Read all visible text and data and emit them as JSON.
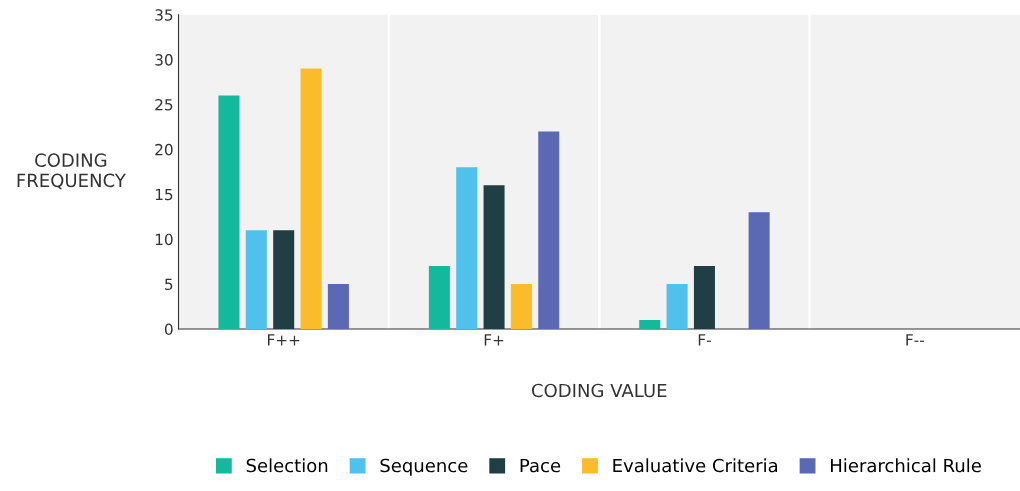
{
  "chart_data": {
    "type": "bar",
    "xlabel": "CODING VALUE",
    "ylabel": "CODING\nFREQUENCY",
    "categories": [
      "F++",
      "F+",
      "F-",
      "F--"
    ],
    "series": [
      {
        "name": "Selection",
        "color": "#14b89c",
        "values": [
          26,
          7,
          1,
          0
        ]
      },
      {
        "name": "Sequence",
        "color": "#4fc1ec",
        "values": [
          11,
          18,
          5,
          0
        ]
      },
      {
        "name": "Pace",
        "color": "#1f3f45",
        "values": [
          11,
          16,
          7,
          0
        ]
      },
      {
        "name": "Evaluative Criteria",
        "color": "#fbbc2c",
        "values": [
          29,
          5,
          0,
          0
        ]
      },
      {
        "name": "Hierarchical Rule",
        "color": "#5b68b3",
        "values": [
          5,
          22,
          13,
          0
        ]
      }
    ],
    "ylim": [
      0,
      35
    ],
    "yticks": [
      0,
      5,
      10,
      15,
      20,
      25,
      30,
      35
    ],
    "grid": "x",
    "legend": "bottom"
  }
}
